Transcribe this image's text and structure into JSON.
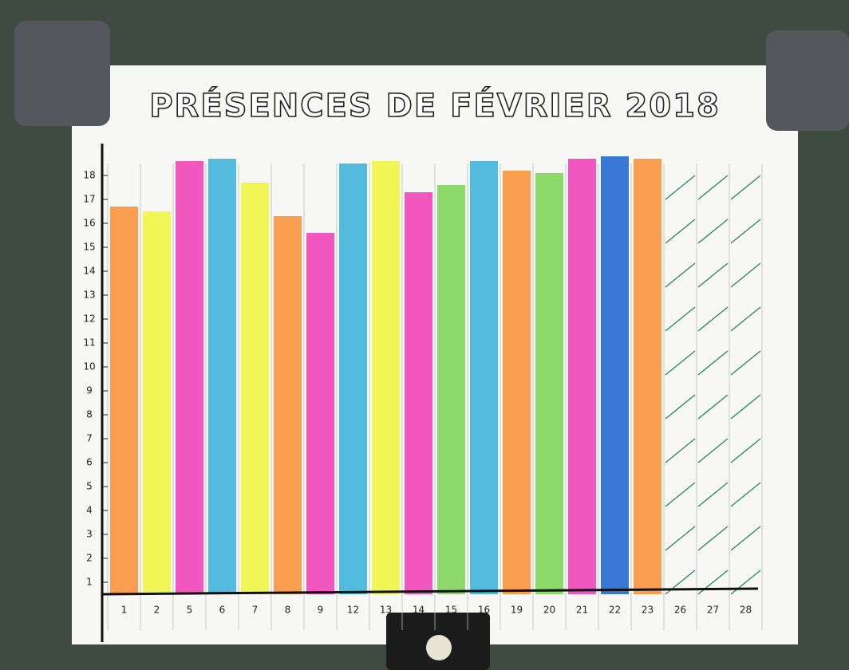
{
  "chart_data": {
    "type": "bar",
    "title": "PRÉSENCES DE FÉVRIER 2018",
    "categories": [
      "1",
      "2",
      "5",
      "6",
      "7",
      "8",
      "9",
      "12",
      "13",
      "14",
      "15",
      "16",
      "19",
      "20",
      "21",
      "22",
      "23",
      "26",
      "27",
      "28"
    ],
    "values": [
      16.7,
      16.5,
      18.6,
      18.7,
      17.7,
      16.3,
      15.6,
      18.5,
      18.6,
      17.3,
      17.6,
      18.6,
      18.2,
      18.1,
      18.7,
      18.8,
      18.7,
      null,
      null,
      null
    ],
    "colors": [
      "#f7933c",
      "#eef545",
      "#f045b8",
      "#40b4dc",
      "#eef545",
      "#f7933c",
      "#f045b8",
      "#40b4dc",
      "#eef545",
      "#f045b8",
      "#80d45c",
      "#40b4dc",
      "#f7933c",
      "#80d45c",
      "#f045b8",
      "#2468d0",
      "#f7933c",
      null,
      null,
      null
    ],
    "ylim": [
      0.5,
      19.5
    ],
    "yticks": [
      1,
      2,
      3,
      4,
      5,
      6,
      7,
      8,
      9,
      10,
      11,
      12,
      13,
      14,
      15,
      16,
      17,
      18
    ],
    "grid": true
  }
}
